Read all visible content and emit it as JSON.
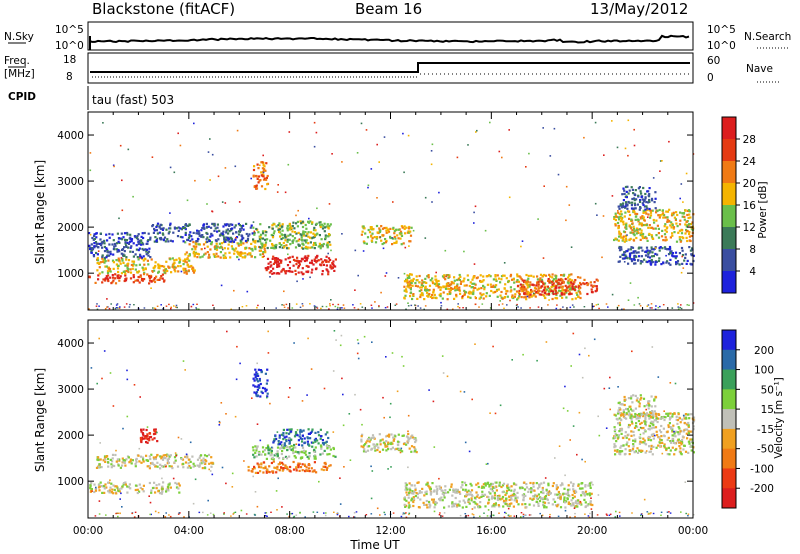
{
  "header": {
    "station": "Blackstone (fitACF)",
    "beam": "Beam 16",
    "date": "13/May/2012"
  },
  "noise_panel": {
    "left_label": "N.Sky",
    "right_label": "N.Search",
    "left_ticks": [
      "10^5",
      "10^0"
    ],
    "right_ticks": [
      "10^5",
      "10^0"
    ]
  },
  "freq_panel": {
    "left_label_1": "Freq.",
    "left_label_2": "[MHz]",
    "left_ticks": [
      "18",
      "8"
    ],
    "right_label": "Nave",
    "right_ticks": [
      "60",
      "0"
    ],
    "cpid_label": "CPID",
    "cpid_text": "tau (fast) 503"
  },
  "chart_data": [
    {
      "type": "heatmap",
      "title": "",
      "ylabel": "Slant Range [km]",
      "xlabel": "",
      "xlim": [
        0,
        24
      ],
      "ylim": [
        200,
        4500
      ],
      "x_ticks": [
        "00:00",
        "04:00",
        "08:00",
        "12:00",
        "16:00",
        "20:00",
        "00:00"
      ],
      "y_ticks": [
        "1000",
        "2000",
        "3000",
        "4000"
      ],
      "colorbar_label": "Power [dB]",
      "colorbar_ticks": [
        "4",
        "8",
        "12",
        "16",
        "20",
        "24",
        "28"
      ],
      "colorbar_colors": [
        "#1e22dc",
        "#3a4ea0",
        "#3b7a58",
        "#6abf4a",
        "#f4b400",
        "#f07a14",
        "#e53a12",
        "#dc1e1e"
      ],
      "clusters": [
        {
          "t_start": 0.0,
          "t_end": 3.0,
          "r_low": 800,
          "r_high": 1000,
          "level": 6
        },
        {
          "t_start": 0.3,
          "t_end": 4.2,
          "r_low": 1000,
          "r_high": 1350,
          "level": 4
        },
        {
          "t_start": 0.0,
          "t_end": 2.5,
          "r_low": 1350,
          "r_high": 1900,
          "level": 1
        },
        {
          "t_start": 3.8,
          "t_end": 7.0,
          "r_low": 1350,
          "r_high": 1700,
          "level": 4
        },
        {
          "t_start": 2.5,
          "t_end": 6.5,
          "r_low": 1700,
          "r_high": 2100,
          "level": 1
        },
        {
          "t_start": 6.5,
          "t_end": 9.6,
          "r_low": 1550,
          "r_high": 2150,
          "level": 3
        },
        {
          "t_start": 7.0,
          "t_end": 9.8,
          "r_low": 1000,
          "r_high": 1400,
          "level": 7
        },
        {
          "t_start": 6.5,
          "t_end": 7.1,
          "r_low": 2850,
          "r_high": 3450,
          "level": 5
        },
        {
          "t_start": 10.8,
          "t_end": 12.8,
          "r_low": 1650,
          "r_high": 2050,
          "level": 4
        },
        {
          "t_start": 12.5,
          "t_end": 19.5,
          "r_low": 450,
          "r_high": 1000,
          "level": 4
        },
        {
          "t_start": 17.0,
          "t_end": 20.2,
          "r_low": 550,
          "r_high": 900,
          "level": 6
        },
        {
          "t_start": 20.8,
          "t_end": 24.0,
          "r_low": 1700,
          "r_high": 2400,
          "level": 4
        },
        {
          "t_start": 21.0,
          "t_end": 24.0,
          "r_low": 1200,
          "r_high": 1600,
          "level": 1
        },
        {
          "t_start": 21.0,
          "t_end": 22.5,
          "r_low": 2400,
          "r_high": 2900,
          "level": 1
        }
      ]
    },
    {
      "type": "heatmap",
      "title": "",
      "ylabel": "Slant Range [km]",
      "xlabel": "Time UT",
      "xlim": [
        0,
        24
      ],
      "ylim": [
        200,
        4500
      ],
      "x_ticks": [
        "00:00",
        "04:00",
        "08:00",
        "12:00",
        "16:00",
        "20:00",
        "00:00"
      ],
      "y_ticks": [
        "1000",
        "2000",
        "3000",
        "4000"
      ],
      "colorbar_label": "Velocity [m s⁻¹]",
      "colorbar_ticks": [
        "200",
        "100",
        "50",
        "15",
        "-15",
        "-50",
        "-100",
        "-200"
      ],
      "colorbar_colors": [
        "#1e22dc",
        "#2a6aa8",
        "#3aa05a",
        "#7ccf3a",
        "#c0c0b8",
        "#f0a020",
        "#f07a14",
        "#ec3a14",
        "#dc1e1e"
      ],
      "clusters": [
        {
          "t_start": 0.0,
          "t_end": 3.6,
          "r_low": 750,
          "r_high": 1000,
          "level": 4
        },
        {
          "t_start": 0.3,
          "t_end": 5.0,
          "r_low": 1300,
          "r_high": 1600,
          "level": 4
        },
        {
          "t_start": 2.0,
          "t_end": 2.7,
          "r_low": 1850,
          "r_high": 2150,
          "level": 8
        },
        {
          "t_start": 6.3,
          "t_end": 9.6,
          "r_low": 1200,
          "r_high": 1450,
          "level": 6
        },
        {
          "t_start": 6.5,
          "t_end": 9.8,
          "r_low": 1500,
          "r_high": 1800,
          "level": 3
        },
        {
          "t_start": 7.3,
          "t_end": 9.5,
          "r_low": 1800,
          "r_high": 2150,
          "level": 1
        },
        {
          "t_start": 6.5,
          "t_end": 7.1,
          "r_low": 2850,
          "r_high": 3450,
          "level": 0
        },
        {
          "t_start": 10.8,
          "t_end": 13.0,
          "r_low": 1650,
          "r_high": 2050,
          "level": 4
        },
        {
          "t_start": 12.5,
          "t_end": 20.0,
          "r_low": 450,
          "r_high": 1000,
          "level": 4
        },
        {
          "t_start": 20.8,
          "t_end": 24.0,
          "r_low": 1600,
          "r_high": 2500,
          "level": 4
        },
        {
          "t_start": 21.0,
          "t_end": 22.5,
          "r_low": 2400,
          "r_high": 2900,
          "level": 4
        }
      ]
    }
  ]
}
